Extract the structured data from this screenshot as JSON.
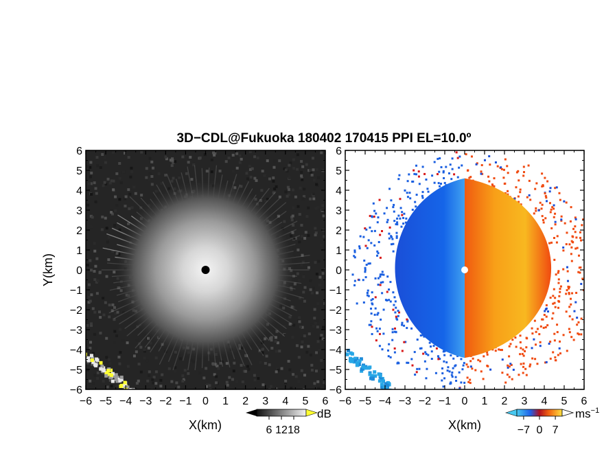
{
  "figure": {
    "title": "3D−CDL@Fukuoka 180402 170415 PPI EL=10.0º"
  },
  "chart_data": [
    {
      "type": "heatmap",
      "panel": "left",
      "quantity": "backscatter intensity (grayscale)",
      "xlabel": "X(km)",
      "ylabel": "Y(km)",
      "xlim": [
        -6,
        6
      ],
      "ylim": [
        -6,
        6
      ],
      "xticks": [
        "−6",
        "−5",
        "−4",
        "−3",
        "−2",
        "−1",
        "0",
        "1",
        "2",
        "3",
        "4",
        "5",
        "6"
      ],
      "yticks": [
        "6",
        "5",
        "4",
        "3",
        "2",
        "1",
        "0",
        "−1",
        "−2",
        "−3",
        "−4",
        "−5",
        "−6"
      ],
      "colorbar": {
        "unit": "dB",
        "ticks": [
          "6",
          "12",
          "18"
        ],
        "range": [
          0,
          24
        ]
      },
      "features": {
        "radar_center": [
          0,
          0
        ],
        "bright_core_radius_km": 4.5,
        "high_intensity_band": {
          "from": [
            -6,
            -4.3
          ],
          "to": [
            -3.7,
            -6
          ]
        }
      }
    },
    {
      "type": "heatmap",
      "panel": "right",
      "quantity": "Doppler radial velocity",
      "xlabel": "X(km)",
      "ylabel": "",
      "xlim": [
        -6,
        6
      ],
      "ylim": [
        -6,
        6
      ],
      "xticks": [
        "−6",
        "−5",
        "−4",
        "−3",
        "−2",
        "−1",
        "0",
        "1",
        "2",
        "3",
        "4",
        "5",
        "6"
      ],
      "yticks": [
        "6",
        "5",
        "4",
        "3",
        "2",
        "1",
        "0",
        "−1",
        "−2",
        "−3",
        "−4",
        "−5",
        "−6"
      ],
      "colorbar": {
        "unit": "ms",
        "unit_exponent": "−1",
        "ticks": [
          "−7",
          "0",
          "7"
        ],
        "range": [
          -10,
          10
        ]
      },
      "features": {
        "radar_center": [
          0,
          0
        ],
        "echo_radius_km": 4.6,
        "negative_side": "west (x < 0)",
        "positive_side": "east (x > 0)",
        "outlier_band": {
          "from": [
            -6,
            -4.1
          ],
          "to": [
            -3.8,
            -5.9
          ]
        }
      }
    }
  ],
  "colors": {
    "negative_velocity": "#1a5fe0",
    "positive_velocity": "#f04a10",
    "band_velocity": "#27a6e6",
    "band_intensity": "#ffff30",
    "background": "#ffffff",
    "axis": "#000000"
  }
}
